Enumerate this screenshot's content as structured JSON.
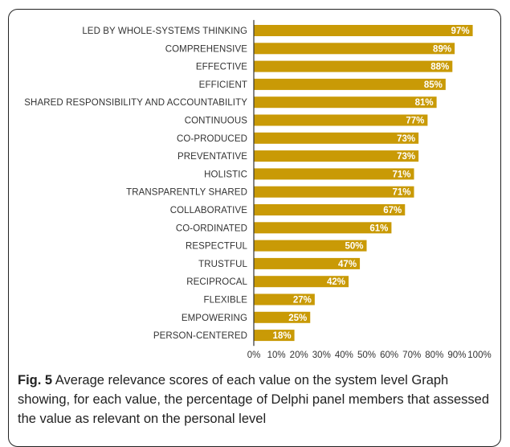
{
  "chart_data": {
    "type": "bar",
    "orientation": "horizontal",
    "categories": [
      "LED BY WHOLE-SYSTEMS THINKING",
      "COMPREHENSIVE",
      "EFFECTIVE",
      "EFFICIENT",
      "SHARED RESPONSIBILITY AND ACCOUNTABILITY",
      "CONTINUOUS",
      "CO-PRODUCED",
      "PREVENTATIVE",
      "HOLISTIC",
      "TRANSPARENTLY SHARED",
      "COLLABORATIVE",
      "CO-ORDINATED",
      "RESPECTFUL",
      "TRUSTFUL",
      "RECIPROCAL",
      "FLEXIBLE",
      "EMPOWERING",
      "PERSON-CENTERED"
    ],
    "values": [
      97,
      89,
      88,
      85,
      81,
      77,
      73,
      73,
      71,
      71,
      67,
      61,
      50,
      47,
      42,
      27,
      25,
      18
    ],
    "data_labels": [
      "97%",
      "89%",
      "88%",
      "85%",
      "81%",
      "77%",
      "73%",
      "73%",
      "71%",
      "71%",
      "67%",
      "61%",
      "50%",
      "47%",
      "42%",
      "27%",
      "25%",
      "18%"
    ],
    "x_ticks": [
      "0%",
      "10%",
      "20%",
      "30%",
      "40%",
      "50%",
      "60%",
      "70%",
      "80%",
      "90%",
      "100%"
    ],
    "xlim": [
      0,
      100
    ],
    "grid": false,
    "colors": {
      "bar": "#c99a06",
      "data_label": "#ffffff"
    }
  },
  "caption": {
    "label": "Fig. 5",
    "text": " Average relevance scores of each value on the system level Graph showing, for each value, the percentage of Delphi panel members that assessed the value as relevant on the personal level"
  }
}
